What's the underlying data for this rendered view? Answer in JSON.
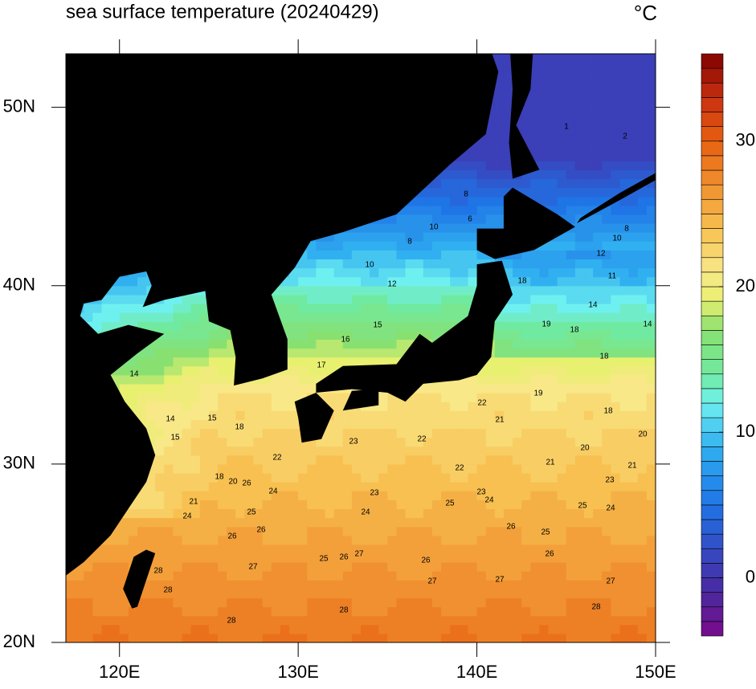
{
  "title": "sea surface temperature (20240429)",
  "unit": "°C",
  "map": {
    "xlim": [
      117,
      150
    ],
    "ylim": [
      20,
      53
    ],
    "xticks": [
      {
        "value": 120,
        "label": "120E"
      },
      {
        "value": 130,
        "label": "130E"
      },
      {
        "value": 140,
        "label": "140E"
      },
      {
        "value": 150,
        "label": "150E"
      }
    ],
    "yticks": [
      {
        "value": 20,
        "label": "20N"
      },
      {
        "value": 30,
        "label": "30N"
      },
      {
        "value": 40,
        "label": "40N"
      },
      {
        "value": 50,
        "label": "50N"
      }
    ]
  },
  "colorbar": {
    "lim": [
      -4,
      36
    ],
    "ticks": [
      0,
      10,
      20,
      30
    ]
  },
  "contour_labels": [
    28,
    28,
    28,
    28,
    28,
    27,
    27,
    27,
    27,
    27,
    26,
    26,
    26,
    26,
    25,
    25,
    25,
    25,
    23,
    23,
    24,
    24,
    24,
    23,
    22,
    23,
    22,
    21,
    21,
    22,
    19,
    20,
    21,
    20,
    18,
    18,
    18,
    19,
    18,
    14,
    11,
    12,
    14,
    10,
    8,
    1,
    2,
    10,
    8,
    6,
    8,
    10,
    12,
    15,
    16,
    17,
    14,
    15,
    15,
    14,
    18,
    22,
    20,
    18,
    21,
    24,
    26,
    24,
    25,
    26,
    26
  ]
}
